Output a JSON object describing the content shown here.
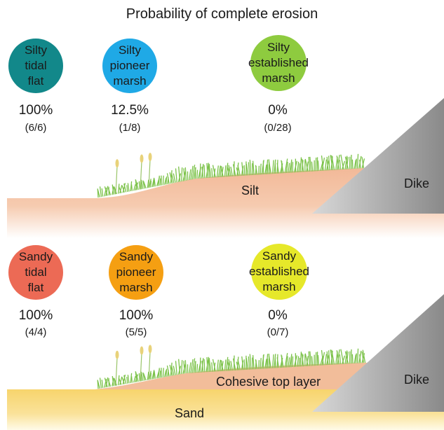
{
  "title": "Probability of complete erosion",
  "silty": {
    "zones": [
      {
        "lines": [
          "Silty",
          "tidal",
          "flat"
        ],
        "percent": "100%",
        "fraction": "(6/6)",
        "color": "#12888a"
      },
      {
        "lines": [
          "Silty",
          "pioneer",
          "marsh"
        ],
        "percent": "12.5%",
        "fraction": "(1/8)",
        "color": "#1fa9e6"
      },
      {
        "lines": [
          "Silty",
          "established",
          "marsh"
        ],
        "percent": "0%",
        "fraction": "(0/28)",
        "color": "#8ecb3f"
      }
    ],
    "sediment_label": "Silt",
    "dike_label": "Dike"
  },
  "sandy": {
    "zones": [
      {
        "lines": [
          "Sandy",
          "tidal",
          "flat"
        ],
        "percent": "100%",
        "fraction": "(4/4)",
        "color": "#ec6a55"
      },
      {
        "lines": [
          "Sandy",
          "pioneer",
          "marsh"
        ],
        "percent": "100%",
        "fraction": "(5/5)",
        "color": "#f59f12"
      },
      {
        "lines": [
          "Sandy",
          "established",
          "marsh"
        ],
        "percent": "0%",
        "fraction": "(0/7)",
        "color": "#e6e82a"
      }
    ],
    "top_layer_label": "Cohesive top layer",
    "sediment_label": "Sand",
    "dike_label": "Dike"
  },
  "colors": {
    "silt": "#f2b897",
    "sand": "#f7d46c",
    "cohesive_layer": "#f2bd9a",
    "grass": "#7cc24a",
    "dike_dark": "#8a8a8a",
    "dike_light": "#d6d6d6"
  }
}
